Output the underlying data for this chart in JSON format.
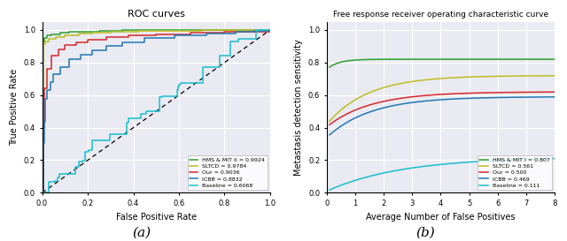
{
  "left_title": "ROC curves",
  "right_title": "Free response receiver operating characteristic curve",
  "left_xlabel": "False Positive Rate",
  "left_ylabel": "True Positive Rate",
  "right_xlabel": "Average Number of False Positives",
  "right_ylabel": "Metastasis detection sensitivity",
  "caption_a": "(a)",
  "caption_b": "(b)",
  "left_legend": [
    {
      "label": "HMS & MIT II = 0.9924",
      "color": "#2ca02c"
    },
    {
      "label": "SLTCD = 0.9784",
      "color": "#bcbd22"
    },
    {
      "label": "Our = 0.9036",
      "color": "#d62728"
    },
    {
      "label": "ICBB = 0.8832",
      "color": "#1f77b4"
    },
    {
      "label": "Baseline = 0.6068",
      "color": "#17becf"
    }
  ],
  "right_legend": [
    {
      "label": "HMS & MIT I = 0.807",
      "color": "#2ca02c"
    },
    {
      "label": "SLTCD = 0.561",
      "color": "#bcbd22"
    },
    {
      "label": "Our = 0.500",
      "color": "#d62728"
    },
    {
      "label": "ICBB = 0.469",
      "color": "#1f77b4"
    },
    {
      "label": "Baseline = 0.111",
      "color": "#17becf"
    }
  ],
  "fig_facecolor": "#ffffff",
  "axes_facecolor": "#eaeaf2"
}
